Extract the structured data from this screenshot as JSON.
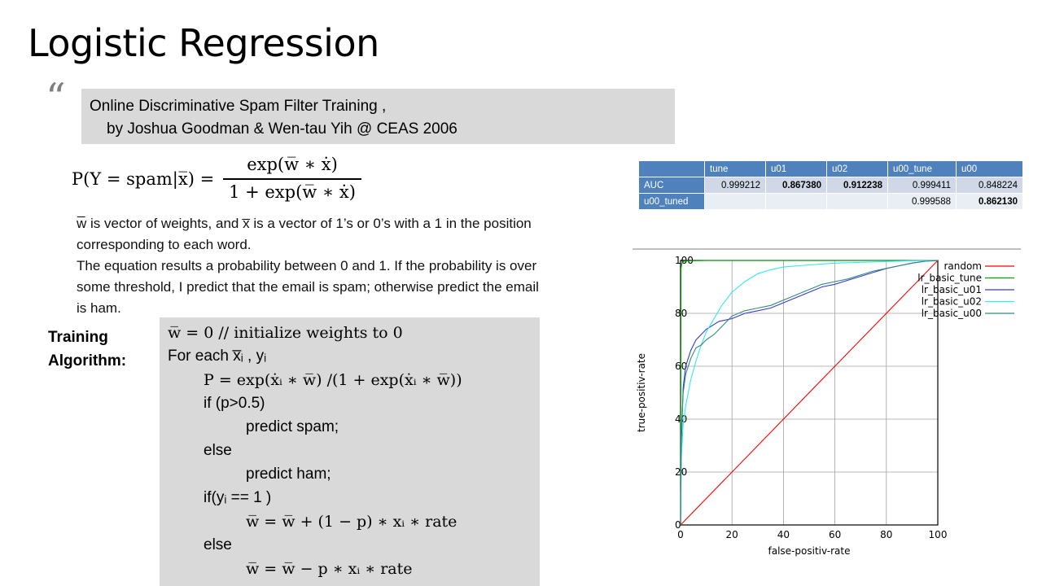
{
  "slide": {
    "title": "Logistic Regression",
    "quote_mark": "“",
    "citation": {
      "line1": "Online Discriminative Spam Filter Training ,",
      "line2": "by Joshua Goodman & Wen-tau Yih @ CEAS 2006"
    },
    "formula": {
      "lhs": "P(Y = spam|x̅) =",
      "numerator": "exp(w̅ ∗ ẋ)",
      "denominator": "1 + exp(w̅ ∗ ẋ)"
    },
    "description": {
      "line1": "w̅ is vector of weights, and x̅ is a vector of 1’s or 0’s with a 1 in the position",
      "line2": "corresponding  to each word.",
      "line3": "The equation results a probability between  0 and 1.  If the probability is over",
      "line4": "some threshold, I predict that the email is spam; otherwise predict the email",
      "line5": "is ham."
    },
    "training_label": {
      "line1": "Training",
      "line2": "Algorithm:"
    },
    "algorithm": [
      "w̅ = 0 // initialize weights to 0",
      "For each x̅ᵢ , yᵢ",
      "P = exp(ẋᵢ ∗ w̅) /(1 + exp(ẋᵢ ∗ w̅))",
      "if (p>0.5)",
      "predict spam;",
      "else",
      "predict ham;",
      "if(yᵢ == 1 )",
      "w̅ = w̅ + (1 − p) ∗ xᵢ ∗ rate",
      "else",
      "w̅ = w̅ − p ∗ xᵢ ∗ rate"
    ]
  },
  "auc_table": {
    "headers": [
      "",
      "tune",
      "u01",
      "u02",
      "u00_tune",
      "u00"
    ],
    "rows": [
      [
        "AUC",
        "0.999212",
        "0.867380",
        "0.912238",
        "0.999411",
        "0.848224"
      ],
      [
        "u00_tuned",
        "",
        "",
        "",
        "0.999588",
        "0.862130"
      ]
    ],
    "colors": {
      "header": "#4f81bd",
      "row_odd": "#d0d8e8",
      "row_even": "#e9edf4"
    }
  },
  "chart_data": {
    "type": "line",
    "xlabel": "false-positiv-rate",
    "ylabel": "true-positiv-rate",
    "xlim": [
      0,
      100
    ],
    "ylim": [
      0,
      100
    ],
    "xticks": [
      0,
      20,
      40,
      60,
      80,
      100
    ],
    "yticks": [
      0,
      20,
      40,
      60,
      80,
      100
    ],
    "grid": true,
    "legend_position": "top-right",
    "series": [
      {
        "name": "random",
        "color": "#ff0000",
        "x": [
          0,
          100
        ],
        "y": [
          0,
          100
        ]
      },
      {
        "name": "lr_basic_tune",
        "color": "#00a000",
        "x": [
          0,
          0.2,
          0.5,
          1,
          2,
          5,
          10,
          100
        ],
        "y": [
          0,
          97,
          99,
          99.6,
          99.8,
          99.9,
          100,
          100
        ]
      },
      {
        "name": "lr_basic_u01",
        "color": "#3a3ad0",
        "x": [
          0,
          0.3,
          1,
          2,
          4,
          6,
          10,
          15,
          20,
          25,
          30,
          35,
          40,
          45,
          50,
          55,
          60,
          65,
          70,
          75,
          80,
          85,
          90,
          95,
          100
        ],
        "y": [
          0,
          30,
          52,
          60,
          66,
          70,
          74,
          77,
          78,
          80,
          81,
          82,
          84,
          86,
          88,
          90,
          91,
          92.5,
          94,
          95.5,
          97,
          98,
          99,
          99.7,
          100
        ]
      },
      {
        "name": "lr_basic_u02",
        "color": "#33e8ee",
        "x": [
          0,
          0.3,
          1,
          2,
          4,
          6,
          8,
          10,
          13,
          16,
          20,
          25,
          30,
          35,
          40,
          50,
          60,
          70,
          80,
          90,
          100
        ],
        "y": [
          0,
          25,
          38,
          45,
          55,
          62,
          68,
          73,
          78,
          83,
          88,
          92,
          95,
          96.5,
          97.5,
          98.3,
          99,
          99.3,
          99.6,
          99.9,
          100
        ]
      },
      {
        "name": "lr_basic_u00",
        "color": "#2e8b7a",
        "x": [
          0,
          0.3,
          1,
          2,
          4,
          6,
          8,
          10,
          13,
          16,
          20,
          25,
          30,
          35,
          40,
          45,
          50,
          55,
          60,
          65,
          70,
          75,
          80,
          85,
          90,
          95,
          100
        ],
        "y": [
          0,
          35,
          50,
          57,
          63,
          67,
          68,
          70,
          72,
          75,
          79,
          81,
          82,
          83,
          85,
          87,
          89,
          91,
          92,
          93,
          94.5,
          96,
          97,
          98,
          99,
          99.7,
          100
        ]
      }
    ]
  }
}
